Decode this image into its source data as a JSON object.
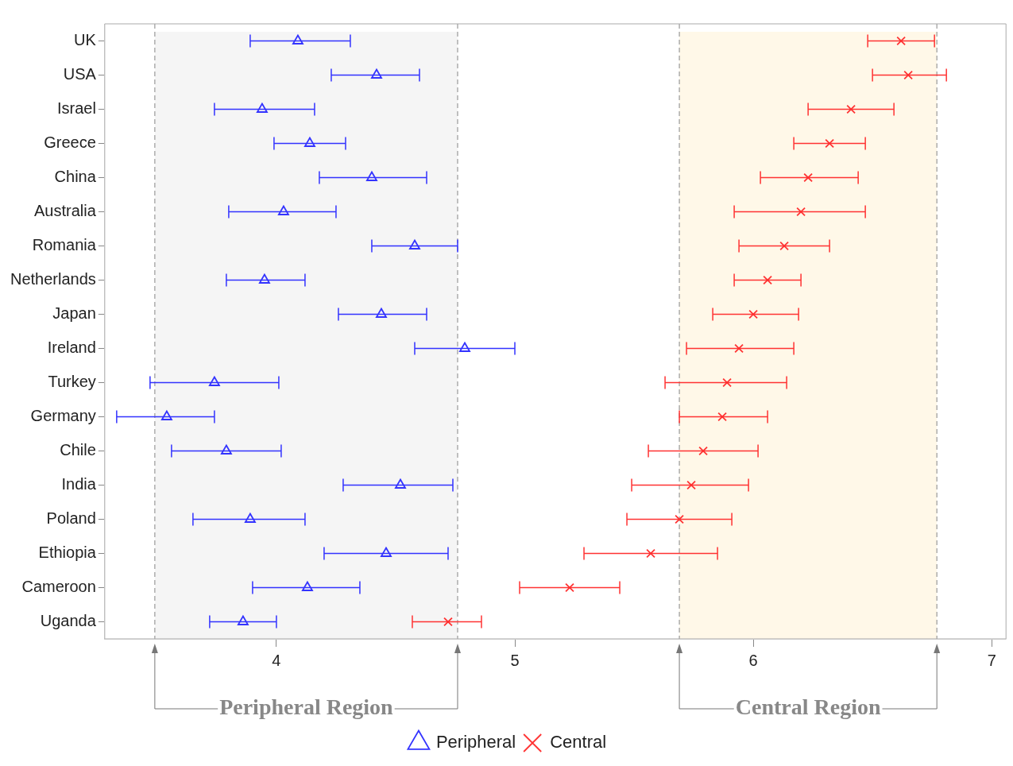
{
  "chart_data": {
    "type": "scatter",
    "categories": [
      "UK",
      "USA",
      "Israel",
      "Greece",
      "China",
      "Australia",
      "Romania",
      "Netherlands",
      "Japan",
      "Ireland",
      "Turkey",
      "Germany",
      "Chile",
      "India",
      "Poland",
      "Ethiopia",
      "Cameroon",
      "Uganda"
    ],
    "series": [
      {
        "name": "Peripheral",
        "color": "#3333ff",
        "marker": "triangle",
        "values": [
          4.09,
          4.42,
          3.94,
          4.14,
          4.4,
          4.03,
          4.58,
          3.95,
          4.44,
          4.79,
          3.74,
          3.54,
          3.79,
          4.52,
          3.89,
          4.46,
          4.13,
          3.86
        ],
        "errors": [
          [
            3.89,
            4.31
          ],
          [
            4.23,
            4.6
          ],
          [
            3.74,
            4.16
          ],
          [
            3.99,
            4.29
          ],
          [
            4.18,
            4.63
          ],
          [
            3.8,
            4.25
          ],
          [
            4.4,
            4.76
          ],
          [
            3.79,
            4.12
          ],
          [
            4.26,
            4.63
          ],
          [
            4.58,
            5.0
          ],
          [
            3.47,
            4.01
          ],
          [
            3.33,
            3.74
          ],
          [
            3.56,
            4.02
          ],
          [
            4.28,
            4.74
          ],
          [
            3.65,
            4.12
          ],
          [
            4.2,
            4.72
          ],
          [
            3.9,
            4.35
          ],
          [
            3.72,
            4.0
          ]
        ]
      },
      {
        "name": "Central",
        "color": "#ff3333",
        "marker": "cross",
        "values": [
          6.62,
          6.65,
          6.41,
          6.32,
          6.23,
          6.2,
          6.13,
          6.06,
          6.0,
          5.94,
          5.89,
          5.87,
          5.79,
          5.74,
          5.69,
          5.57,
          5.23,
          4.72
        ],
        "errors": [
          [
            6.48,
            6.76
          ],
          [
            6.5,
            6.81
          ],
          [
            6.23,
            6.59
          ],
          [
            6.17,
            6.47
          ],
          [
            6.03,
            6.44
          ],
          [
            5.92,
            6.47
          ],
          [
            5.94,
            6.32
          ],
          [
            5.92,
            6.2
          ],
          [
            5.83,
            6.19
          ],
          [
            5.72,
            6.17
          ],
          [
            5.63,
            6.14
          ],
          [
            5.69,
            6.06
          ],
          [
            5.56,
            6.02
          ],
          [
            5.49,
            5.98
          ],
          [
            5.47,
            5.91
          ],
          [
            5.29,
            5.85
          ],
          [
            5.02,
            5.44
          ],
          [
            4.57,
            4.86
          ]
        ]
      }
    ],
    "xlim": [
      3.28,
      7.06
    ],
    "xticks": [
      4,
      5,
      6,
      7
    ],
    "bands": [
      {
        "axis": "x",
        "from": 3.49,
        "to": 4.76,
        "label": "Peripheral Region",
        "color": "#f5f5f5"
      },
      {
        "axis": "x",
        "from": 5.69,
        "to": 6.77,
        "label": "Central Region",
        "color": "#fff8e8"
      }
    ],
    "orientation": "horizontal",
    "grid": false,
    "legend": "bottom"
  }
}
